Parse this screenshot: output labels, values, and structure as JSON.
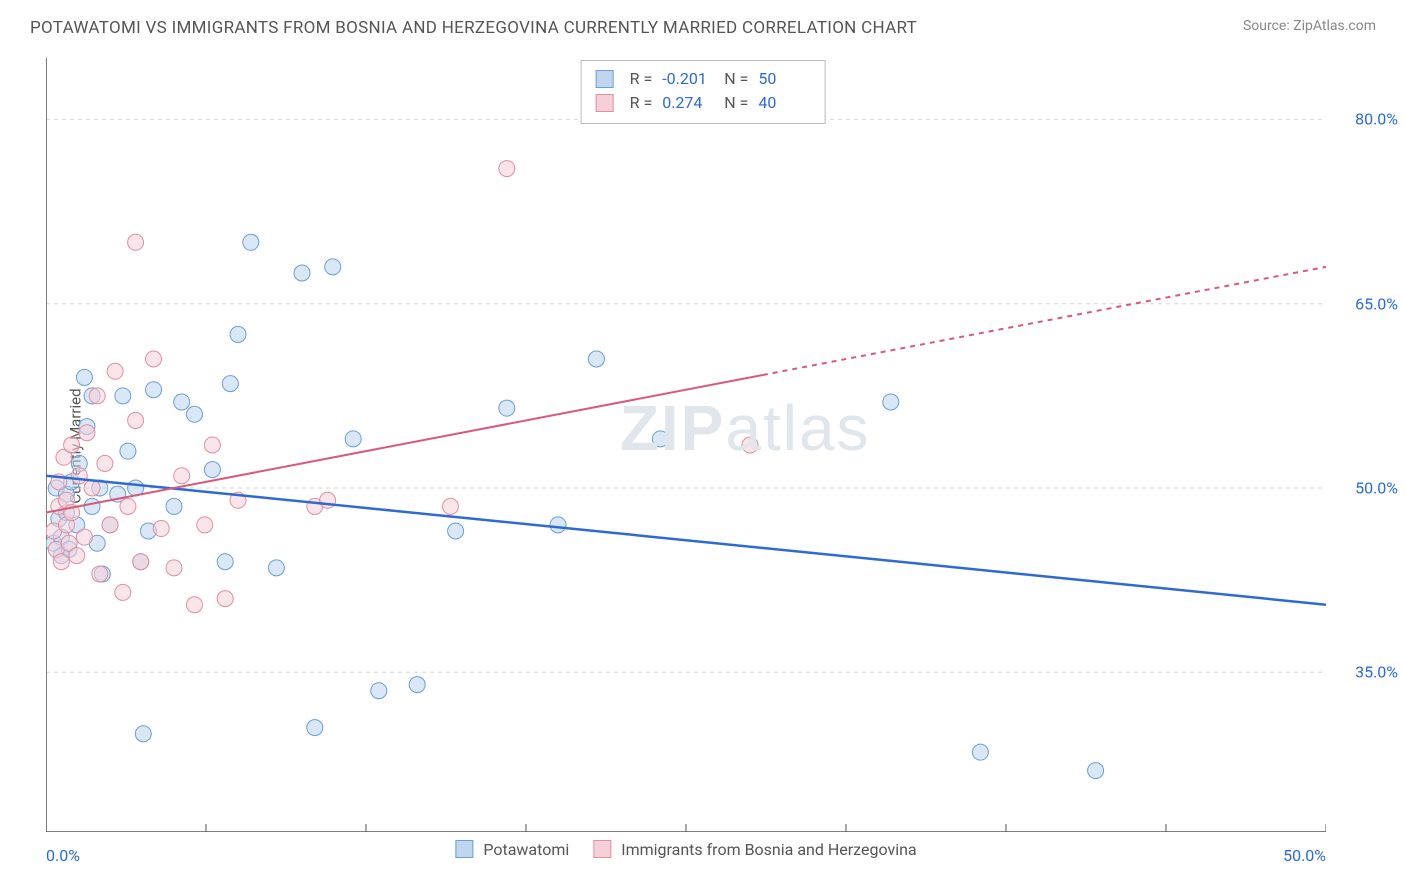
{
  "header": {
    "title": "POTAWATOMI VS IMMIGRANTS FROM BOSNIA AND HERZEGOVINA CURRENTLY MARRIED CORRELATION CHART",
    "source": "Source: ZipAtlas.com"
  },
  "watermark": {
    "left": "ZIP",
    "right": "atlas"
  },
  "chart": {
    "type": "scatter",
    "ylabel": "Currently Married",
    "xlim": [
      0,
      50
    ],
    "ylim": [
      22,
      85
    ],
    "xticks": {
      "first": "0.0%",
      "last": "50.0%",
      "positions_pct": [
        0,
        12.5,
        25,
        37.5,
        50,
        62.5,
        75,
        87.5,
        100
      ]
    },
    "yticks": [
      {
        "pos": 80,
        "label": "80.0%"
      },
      {
        "pos": 65,
        "label": "65.0%"
      },
      {
        "pos": 50,
        "label": "50.0%"
      },
      {
        "pos": 35,
        "label": "35.0%"
      }
    ],
    "gridline_color": "#d6d6d6",
    "axis_color": "#555555",
    "marker_radius": 8,
    "marker_opacity": 0.55,
    "series": [
      {
        "key": "potawatomi",
        "label": "Potawatomi",
        "color_fill": "#bcd4ee",
        "color_stroke": "#6a9fd8",
        "swatch_fill": "#c0d5ee",
        "swatch_border": "#6a9fd8",
        "trend": {
          "y_at_x0": 51.0,
          "y_at_xmax": 40.5,
          "color": "#2d6ad1",
          "width": 2.5
        },
        "stats": {
          "R": "-0.201",
          "N": "50"
        },
        "points": [
          [
            0.3,
            45.5
          ],
          [
            0.4,
            50.0
          ],
          [
            0.5,
            47.5
          ],
          [
            0.6,
            44.5
          ],
          [
            0.6,
            46.0
          ],
          [
            0.8,
            48.0
          ],
          [
            0.8,
            49.5
          ],
          [
            0.9,
            45.0
          ],
          [
            1.0,
            50.5
          ],
          [
            1.2,
            47.0
          ],
          [
            1.3,
            52.0
          ],
          [
            1.5,
            59.0
          ],
          [
            1.6,
            55.0
          ],
          [
            1.8,
            48.5
          ],
          [
            1.8,
            57.5
          ],
          [
            2.0,
            45.5
          ],
          [
            2.1,
            50.0
          ],
          [
            2.2,
            43.0
          ],
          [
            2.5,
            47.0
          ],
          [
            2.8,
            49.5
          ],
          [
            3.0,
            57.5
          ],
          [
            3.2,
            53.0
          ],
          [
            3.5,
            50.0
          ],
          [
            3.7,
            44.0
          ],
          [
            3.8,
            30.0
          ],
          [
            4.0,
            46.5
          ],
          [
            4.2,
            58.0
          ],
          [
            5.0,
            48.5
          ],
          [
            5.3,
            57.0
          ],
          [
            5.8,
            56.0
          ],
          [
            6.5,
            51.5
          ],
          [
            7.0,
            44.0
          ],
          [
            7.2,
            58.5
          ],
          [
            7.5,
            62.5
          ],
          [
            8.0,
            70.0
          ],
          [
            9.0,
            43.5
          ],
          [
            10.0,
            67.5
          ],
          [
            10.5,
            30.5
          ],
          [
            11.2,
            68.0
          ],
          [
            12.0,
            54.0
          ],
          [
            13.0,
            33.5
          ],
          [
            14.5,
            34.0
          ],
          [
            16.0,
            46.5
          ],
          [
            18.0,
            56.5
          ],
          [
            20.0,
            47.0
          ],
          [
            21.5,
            60.5
          ],
          [
            24.0,
            54.0
          ],
          [
            33.0,
            57.0
          ],
          [
            36.5,
            28.5
          ],
          [
            41.0,
            27.0
          ]
        ]
      },
      {
        "key": "bosnia",
        "label": "Immigrants from Bosnia and Herzegovina",
        "color_fill": "#f6d0d8",
        "color_stroke": "#e28fa0",
        "swatch_fill": "#f6d0d8",
        "swatch_border": "#e28fa0",
        "trend": {
          "y_at_x0": 48.0,
          "y_at_xmax": 68.0,
          "color": "#d85a7a",
          "width": 2,
          "solid_until_x": 28,
          "dashed": true
        },
        "stats": {
          "R": "0.274",
          "N": "40"
        },
        "points": [
          [
            0.3,
            46.5
          ],
          [
            0.4,
            45.0
          ],
          [
            0.5,
            48.5
          ],
          [
            0.5,
            50.5
          ],
          [
            0.6,
            44.0
          ],
          [
            0.7,
            52.5
          ],
          [
            0.8,
            47.0
          ],
          [
            0.8,
            49.0
          ],
          [
            0.9,
            45.5
          ],
          [
            1.0,
            53.5
          ],
          [
            1.0,
            48.0
          ],
          [
            1.2,
            44.5
          ],
          [
            1.3,
            51.0
          ],
          [
            1.5,
            46.0
          ],
          [
            1.6,
            54.5
          ],
          [
            1.8,
            50.0
          ],
          [
            2.0,
            57.5
          ],
          [
            2.1,
            43.0
          ],
          [
            2.3,
            52.0
          ],
          [
            2.5,
            47.0
          ],
          [
            2.7,
            59.5
          ],
          [
            3.0,
            41.5
          ],
          [
            3.2,
            48.5
          ],
          [
            3.5,
            55.5
          ],
          [
            3.7,
            44.0
          ],
          [
            3.5,
            70.0
          ],
          [
            4.2,
            60.5
          ],
          [
            4.5,
            46.7
          ],
          [
            5.0,
            43.5
          ],
          [
            5.3,
            51.0
          ],
          [
            5.8,
            40.5
          ],
          [
            6.2,
            47.0
          ],
          [
            6.5,
            53.5
          ],
          [
            7.0,
            41.0
          ],
          [
            7.5,
            49.0
          ],
          [
            10.5,
            48.5
          ],
          [
            11.0,
            49.0
          ],
          [
            15.8,
            48.5
          ],
          [
            18.0,
            76.0
          ],
          [
            27.5,
            53.5
          ]
        ]
      }
    ]
  }
}
